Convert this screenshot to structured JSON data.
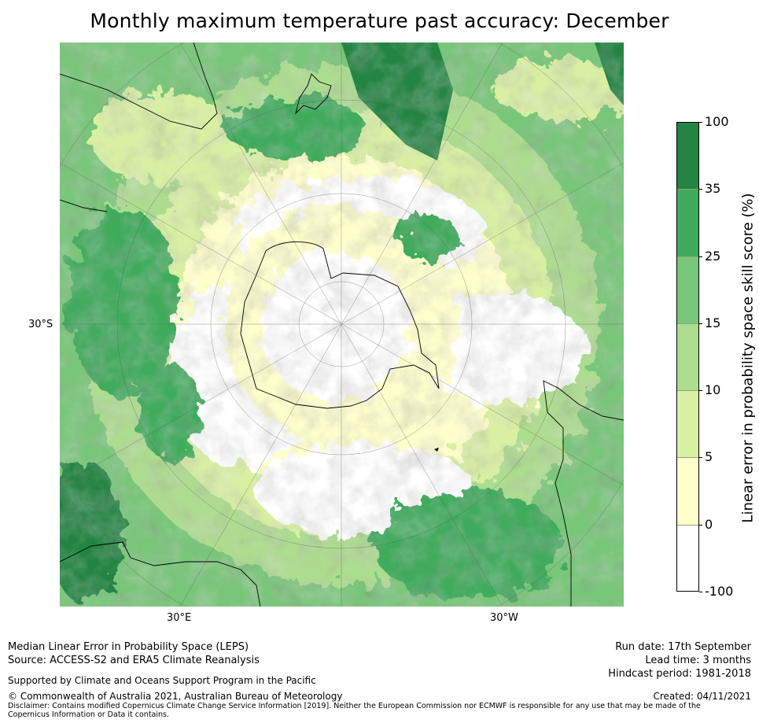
{
  "title": "Monthly maximum temperature past accuracy: December",
  "axes": {
    "lat_label": "30°S",
    "lon_labels": [
      "30°E",
      "30°W"
    ]
  },
  "colorbar": {
    "label": "Linear error in probability space skill score (%)",
    "ticks": [
      "100",
      "35",
      "25",
      "15",
      "10",
      "5",
      "0",
      "-100"
    ],
    "bins": [
      {
        "from": "35",
        "to": "100",
        "color": "#238443"
      },
      {
        "from": "25",
        "to": "35",
        "color": "#41ab5d"
      },
      {
        "from": "15",
        "to": "25",
        "color": "#78c679"
      },
      {
        "from": "10",
        "to": "15",
        "color": "#addd8e"
      },
      {
        "from": "5",
        "to": "10",
        "color": "#d9f0a3"
      },
      {
        "from": "0",
        "to": "5",
        "color": "#ffffcc"
      },
      {
        "from": "-100",
        "to": "0",
        "color": "#ffffff"
      }
    ]
  },
  "footer": {
    "method": "Median Linear Error in Probability Space (LEPS)",
    "source": "Source: ACCESS-S2 and ERA5 Climate Reanalysis",
    "support": "Supported by Climate and Oceans Support Program in the Pacific",
    "copyright": "© Commonwealth of Australia 2021, Australian Bureau of Meteorology",
    "disclaimer": "Disclaimer: Contains modified Copernicus Climate Change Service Information [2019]. Neither the European Commission nor ECMWF is responsible for any use that may be made of the Copernicus Information or Data it contains.",
    "run_date": "Run date: 17th September",
    "lead_time": "Lead time: 3 months",
    "hindcast": "Hindcast period: 1981-2018",
    "created": "Created: 04/11/2021"
  }
}
